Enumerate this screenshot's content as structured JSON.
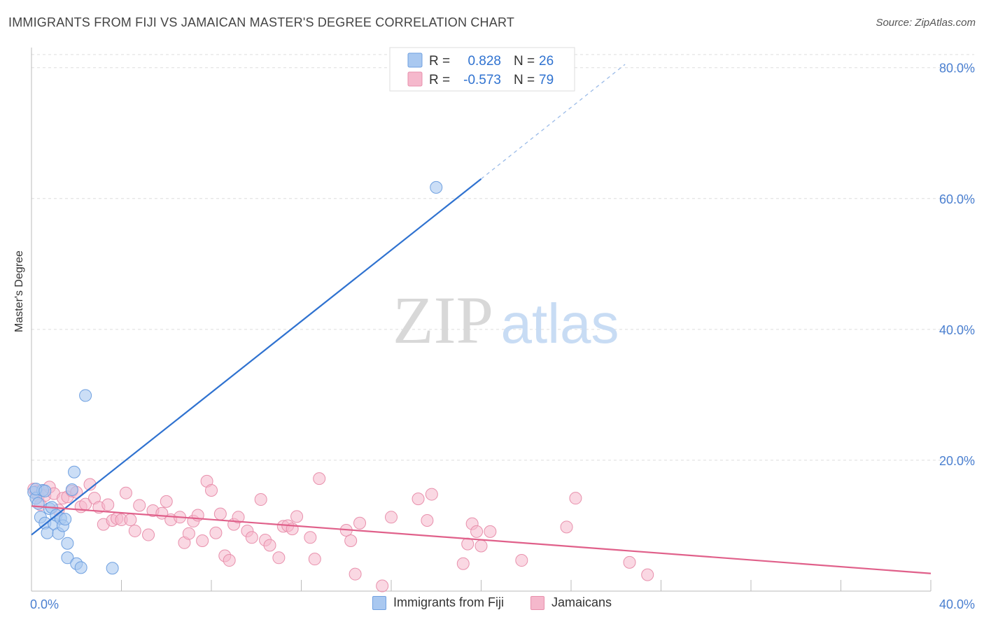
{
  "title": "IMMIGRANTS FROM FIJI VS JAMAICAN MASTER'S DEGREE CORRELATION CHART",
  "source": "Source: ZipAtlas.com",
  "watermark": {
    "part1": "ZIP",
    "part2": "atlas"
  },
  "colors": {
    "fiji": "#a9c8f0",
    "fiji_stroke": "#6fa0e0",
    "fiji_line": "#2f72d0",
    "jam": "#f5b8cc",
    "jam_stroke": "#e890ac",
    "jam_line": "#e0608a",
    "axis_text": "#4a7fd0",
    "grid": "#dddddd"
  },
  "legend": {
    "fiji": {
      "r_label": "R =",
      "r_value": "0.828",
      "n_label": "N =",
      "n_value": "26"
    },
    "jam": {
      "r_label": "R =",
      "r_value": "-0.573",
      "n_label": "N =",
      "n_value": "79"
    }
  },
  "chart_data": {
    "type": "scatter",
    "title": "IMMIGRANTS FROM FIJI VS JAMAICAN MASTER'S DEGREE CORRELATION CHART",
    "xlabel": "",
    "ylabel": "Master's Degree",
    "xlim": [
      0,
      40
    ],
    "ylim": [
      0,
      82
    ],
    "x_tick_labels": [
      "0.0%",
      "40.0%"
    ],
    "y_ticks": [
      20,
      40,
      60,
      80
    ],
    "y_tick_labels": [
      "20.0%",
      "40.0%",
      "60.0%",
      "80.0%"
    ],
    "grid": true,
    "legend_position": "top-center",
    "series": [
      {
        "name": "Immigrants from Fiji",
        "points": [
          [
            0.1,
            15.1
          ],
          [
            0.2,
            14.2
          ],
          [
            0.3,
            13.4
          ],
          [
            0.5,
            15.4
          ],
          [
            0.4,
            11.3
          ],
          [
            0.6,
            10.4
          ],
          [
            0.7,
            8.9
          ],
          [
            0.8,
            12.6
          ],
          [
            0.9,
            12.8
          ],
          [
            1.0,
            10.3
          ],
          [
            1.1,
            11.6
          ],
          [
            1.2,
            8.8
          ],
          [
            1.3,
            11.1
          ],
          [
            1.4,
            10.0
          ],
          [
            1.5,
            11.0
          ],
          [
            1.6,
            7.3
          ],
          [
            1.6,
            5.1
          ],
          [
            1.8,
            15.5
          ],
          [
            1.9,
            18.2
          ],
          [
            2.0,
            4.2
          ],
          [
            2.2,
            3.6
          ],
          [
            2.4,
            29.9
          ],
          [
            3.6,
            3.5
          ],
          [
            18.0,
            61.7
          ],
          [
            0.2,
            15.6
          ],
          [
            0.6,
            15.3
          ]
        ],
        "trend": {
          "x0": 0,
          "y0": 8.6,
          "x1": 20.0,
          "y1": 63.0,
          "dash_x1": 26.4,
          "dash_y1": 80.5
        }
      },
      {
        "name": "Jamaicans",
        "points": [
          [
            0.1,
            15.6
          ],
          [
            0.2,
            15.2
          ],
          [
            0.3,
            14.5
          ],
          [
            0.4,
            13.2
          ],
          [
            0.5,
            15.4
          ],
          [
            0.6,
            14.6
          ],
          [
            0.8,
            15.9
          ],
          [
            1.0,
            14.9
          ],
          [
            1.2,
            12.4
          ],
          [
            1.4,
            14.2
          ],
          [
            1.6,
            14.4
          ],
          [
            1.8,
            15.3
          ],
          [
            2.0,
            15.1
          ],
          [
            2.2,
            12.9
          ],
          [
            2.4,
            13.3
          ],
          [
            2.6,
            16.3
          ],
          [
            2.8,
            14.2
          ],
          [
            3.0,
            12.8
          ],
          [
            3.2,
            10.2
          ],
          [
            3.4,
            13.2
          ],
          [
            3.6,
            10.8
          ],
          [
            3.8,
            11.1
          ],
          [
            4.0,
            10.9
          ],
          [
            4.2,
            15.0
          ],
          [
            4.4,
            10.9
          ],
          [
            4.6,
            9.2
          ],
          [
            4.8,
            13.1
          ],
          [
            5.2,
            8.6
          ],
          [
            5.4,
            12.3
          ],
          [
            5.8,
            11.9
          ],
          [
            6.0,
            13.7
          ],
          [
            6.2,
            10.9
          ],
          [
            6.6,
            11.3
          ],
          [
            6.8,
            7.4
          ],
          [
            7.0,
            8.8
          ],
          [
            7.2,
            10.7
          ],
          [
            7.4,
            11.6
          ],
          [
            7.6,
            7.7
          ],
          [
            7.8,
            16.8
          ],
          [
            8.0,
            15.4
          ],
          [
            8.2,
            8.9
          ],
          [
            8.4,
            11.8
          ],
          [
            8.6,
            5.4
          ],
          [
            8.8,
            4.7
          ],
          [
            9.0,
            10.2
          ],
          [
            9.2,
            11.3
          ],
          [
            9.6,
            9.2
          ],
          [
            9.8,
            8.2
          ],
          [
            10.2,
            14.0
          ],
          [
            10.4,
            7.8
          ],
          [
            10.6,
            7.0
          ],
          [
            11.0,
            5.1
          ],
          [
            11.2,
            9.9
          ],
          [
            11.4,
            10.0
          ],
          [
            11.6,
            9.5
          ],
          [
            11.8,
            11.4
          ],
          [
            12.4,
            8.2
          ],
          [
            12.6,
            4.9
          ],
          [
            12.8,
            17.2
          ],
          [
            14.0,
            9.3
          ],
          [
            14.2,
            7.7
          ],
          [
            14.4,
            2.6
          ],
          [
            14.6,
            10.4
          ],
          [
            15.6,
            0.8
          ],
          [
            16.0,
            11.3
          ],
          [
            17.2,
            14.1
          ],
          [
            17.6,
            10.8
          ],
          [
            17.8,
            14.8
          ],
          [
            19.2,
            4.2
          ],
          [
            19.4,
            7.2
          ],
          [
            19.6,
            10.3
          ],
          [
            19.8,
            9.1
          ],
          [
            20.0,
            6.9
          ],
          [
            20.4,
            9.1
          ],
          [
            21.8,
            4.7
          ],
          [
            23.8,
            9.8
          ],
          [
            24.2,
            14.2
          ],
          [
            26.6,
            4.4
          ],
          [
            27.4,
            2.5
          ]
        ],
        "trend": {
          "x0": 0,
          "y0": 13.0,
          "x1": 40,
          "y1": 2.7
        }
      }
    ]
  }
}
